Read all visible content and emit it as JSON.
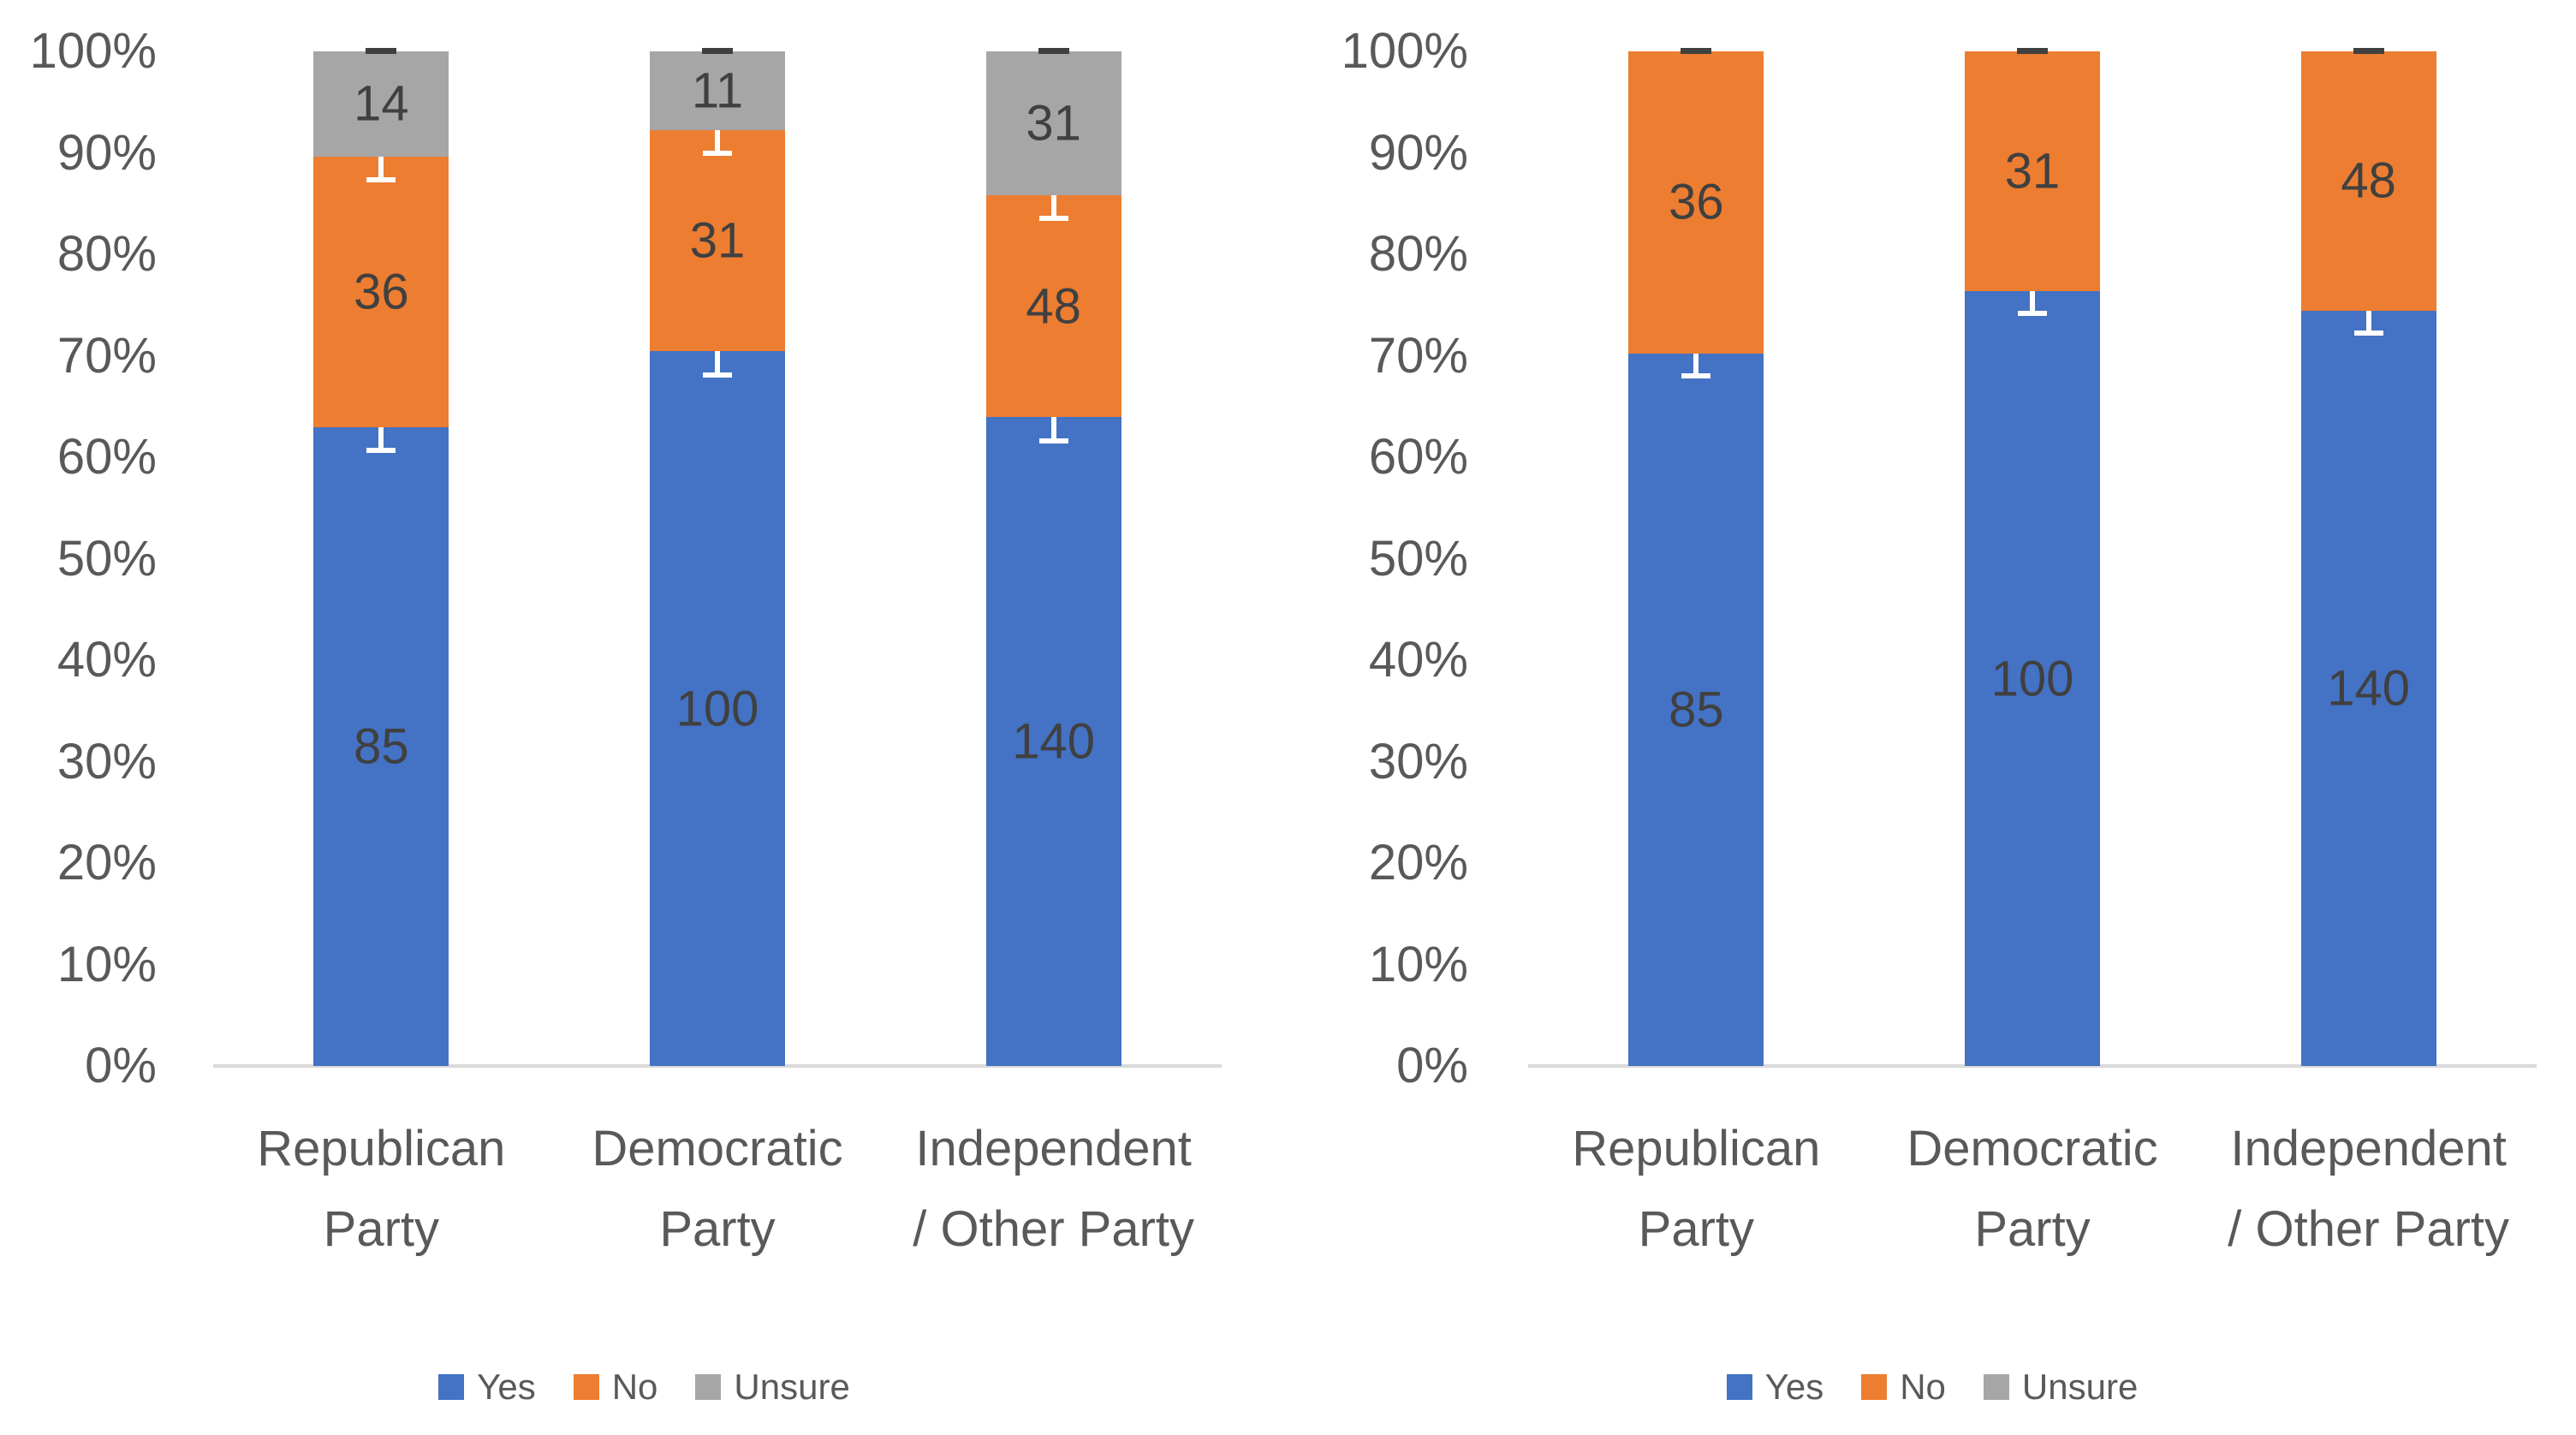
{
  "page": {
    "background": "#ffffff"
  },
  "colors": {
    "yes_blue": "#4472C4",
    "no_orange": "#ED7D31",
    "unsure_gray": "#A6A6A6",
    "axis_line": "#D9D9D9",
    "axis_text": "#595959",
    "data_label_text": "#404040",
    "error_bar": "#FFFFFF",
    "error_top_cap": "#404040"
  },
  "chart_data": [
    {
      "id": "left",
      "type": "bar",
      "subtype": "stacked-100pct-column",
      "title": "",
      "categories": [
        "Republican Party",
        "Democratic Party",
        "Independent / Other Party"
      ],
      "category_label_lines": [
        [
          "Republican",
          "Party"
        ],
        [
          "Democratic",
          "Party"
        ],
        [
          "Independent",
          "/ Other Party"
        ]
      ],
      "series": [
        {
          "name": "Yes",
          "color": "#4472C4",
          "values": [
            85,
            100,
            140
          ]
        },
        {
          "name": "No",
          "color": "#ED7D31",
          "values": [
            36,
            31,
            48
          ]
        },
        {
          "name": "Unsure",
          "color": "#A6A6A6",
          "values": [
            14,
            11,
            31
          ]
        }
      ],
      "data_labels_shown": true,
      "y_axis": {
        "min": 0,
        "max": 100,
        "tick_labels": [
          "0%",
          "10%",
          "20%",
          "30%",
          "40%",
          "50%",
          "60%",
          "70%",
          "80%",
          "90%",
          "100%"
        ],
        "grid": false
      },
      "error_bars": {
        "shown": true,
        "at_segment_boundaries": true,
        "half_height_pct": 2.3,
        "color": "#FFFFFF",
        "top_cap_at_100pct": true,
        "top_cap_color": "#404040"
      },
      "legend": {
        "position": "bottom",
        "entries": [
          {
            "label": "Yes",
            "color": "#4472C4"
          },
          {
            "label": "No",
            "color": "#ED7D31"
          },
          {
            "label": "Unsure",
            "color": "#A6A6A6"
          }
        ]
      }
    },
    {
      "id": "right",
      "type": "bar",
      "subtype": "stacked-100pct-column",
      "title": "",
      "categories": [
        "Republican Party",
        "Democratic Party",
        "Independent / Other Party"
      ],
      "category_label_lines": [
        [
          "Republican",
          "Party"
        ],
        [
          "Democratic",
          "Party"
        ],
        [
          "Independent",
          "/ Other Party"
        ]
      ],
      "series": [
        {
          "name": "Yes",
          "color": "#4472C4",
          "values": [
            85,
            100,
            140
          ]
        },
        {
          "name": "No",
          "color": "#ED7D31",
          "values": [
            36,
            31,
            48
          ]
        }
      ],
      "data_labels_shown": true,
      "y_axis": {
        "min": 0,
        "max": 100,
        "tick_labels": [
          "0%",
          "10%",
          "20%",
          "30%",
          "40%",
          "50%",
          "60%",
          "70%",
          "80%",
          "90%",
          "100%"
        ],
        "grid": false
      },
      "error_bars": {
        "shown": true,
        "at_segment_boundaries": true,
        "half_height_pct": 2.2,
        "color": "#FFFFFF",
        "top_cap_at_100pct": true,
        "top_cap_color": "#404040"
      },
      "legend": {
        "position": "bottom",
        "entries": [
          {
            "label": "Yes",
            "color": "#4472C4"
          },
          {
            "label": "No",
            "color": "#ED7D31"
          },
          {
            "label": "Unsure",
            "color": "#A6A6A6"
          }
        ]
      }
    }
  ]
}
